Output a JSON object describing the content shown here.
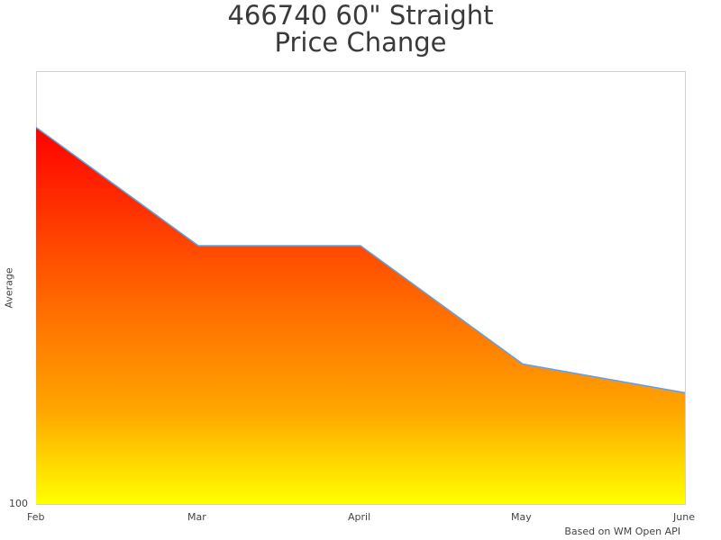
{
  "title": {
    "line1": "466740 60\" Straight",
    "line2": "Price Change"
  },
  "credit": "Based on WM Open API",
  "colors": {
    "gradient_top": "#ff0000",
    "gradient_mid": "#ff6600",
    "gradient_bottom": "#ffff00",
    "line": "#6a9fd8",
    "border": "#d0d0d0"
  },
  "chart_data": {
    "type": "area",
    "title": "466740 60\" Straight Price Change",
    "xlabel": "",
    "ylabel": "Average",
    "categories": [
      "Feb",
      "Mar",
      "April",
      "May",
      "June"
    ],
    "series": [
      {
        "name": "Average",
        "values": [
          415,
          316,
          316,
          217,
          193
        ]
      }
    ],
    "y_ticks": [
      "100"
    ],
    "ylim": [
      100,
      462
    ],
    "grid": false,
    "legend": "none",
    "fill": "vertical gradient red (top) to orange to yellow (bottom)"
  },
  "axis": {
    "ylabel": "Average",
    "ytick_min": "100",
    "xticks": [
      "Feb",
      "Mar",
      "April",
      "May",
      "June"
    ]
  }
}
